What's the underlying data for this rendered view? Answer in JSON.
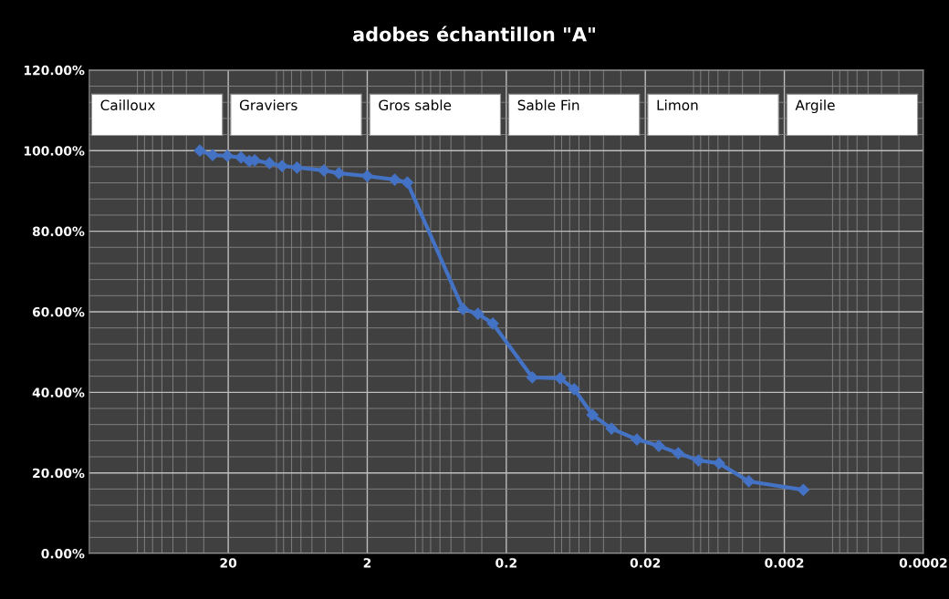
{
  "chart_data": {
    "type": "line",
    "title": "adobes échantillon \"A\"",
    "x": [
      32,
      25.9,
      20.3,
      16.2,
      14.1,
      12.9,
      10.1,
      8.2,
      6.4,
      4.1,
      3.2,
      2.0,
      1.27,
      1.03,
      0.41,
      0.32,
      0.25,
      0.13,
      0.082,
      0.065,
      0.048,
      0.035,
      0.023,
      0.016,
      0.0116,
      0.0083,
      0.0059,
      0.0036,
      0.00146
    ],
    "series": [
      {
        "color": "#4472c4",
        "values": [
          100,
          98.9,
          98.7,
          98.3,
          97.4,
          97.6,
          96.9,
          96.2,
          95.8,
          95.1,
          94.4,
          93.7,
          92.8,
          92.1,
          60.7,
          59.5,
          57.1,
          43.7,
          43.5,
          40.8,
          34.4,
          31.0,
          28.3,
          26.7,
          24.9,
          23.1,
          22.4,
          17.9,
          15.8
        ]
      }
    ],
    "log": "x",
    "xlim": [
      200,
      0.0002
    ],
    "xticks": [
      20,
      2,
      0.2,
      0.02,
      0.002,
      0.0002
    ],
    "ylim": [
      0,
      120
    ],
    "yticks": [
      {
        "value": 0,
        "label": "0.00%"
      },
      {
        "value": 20,
        "label": "20.00%"
      },
      {
        "value": 40,
        "label": "40.00%"
      },
      {
        "value": 60,
        "label": "60.00%"
      },
      {
        "value": 80,
        "label": "80.00%"
      },
      {
        "value": 100,
        "label": "100.00%"
      },
      {
        "value": 120,
        "label": "120.00%"
      }
    ],
    "annotations": [
      "Cailloux",
      "Graviers",
      "Gros sable",
      "Sable Fin",
      "Limon",
      "Argile"
    ],
    "grid": true,
    "marker": "diamond",
    "line_style": "solid",
    "legend": false
  }
}
